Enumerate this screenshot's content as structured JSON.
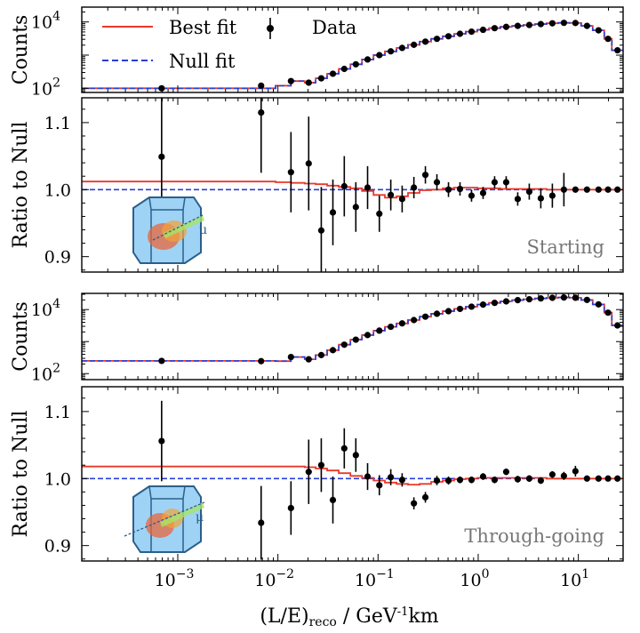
{
  "chart_data": {
    "type": "line",
    "xscale": "log",
    "xlim": [
      0.00011,
      28
    ],
    "xlabel": "(L/E)reco / GeV-1km",
    "x_tick_labels": [
      "10^-3",
      "10^-2",
      "10^-1",
      "10^0",
      "10^1"
    ],
    "legend": {
      "placement": "top-left",
      "entries": [
        {
          "label": "Best fit",
          "color": "#e8392b",
          "style": "solid"
        },
        {
          "label": "Null fit",
          "color": "#2a3ed6",
          "style": "dashed"
        },
        {
          "label": "Data",
          "color": "#000000",
          "style": "points-with-errorbars"
        }
      ]
    },
    "bin_edges": [
      0.00011,
      0.0048,
      0.0095,
      0.0135,
      0.0185,
      0.0238,
      0.031,
      0.0405,
      0.053,
      0.069,
      0.09,
      0.117,
      0.153,
      0.199,
      0.26,
      0.339,
      0.442,
      0.576,
      0.751,
      0.98,
      1.278,
      1.667,
      2.173,
      2.834,
      3.696,
      4.819,
      6.284,
      8.194,
      10.68,
      13.93,
      18.16,
      21.6,
      28
    ],
    "panels": [
      {
        "name": "Starting",
        "counts": {
          "ylabel": "Counts",
          "yscale": "log",
          "ylim": [
            75,
            28000
          ],
          "y_tick_labels": [
            "10^2",
            "10^4"
          ],
          "x": [
            0.00069,
            0.0068,
            0.0135,
            0.0203,
            0.0271,
            0.0354,
            0.046,
            0.06,
            0.0786,
            0.103,
            0.134,
            0.174,
            0.228,
            0.297,
            0.387,
            0.505,
            0.658,
            0.858,
            1.119,
            1.459,
            1.903,
            2.482,
            3.236,
            4.22,
            5.503,
            7.176,
            9.356,
            12.2,
            15.91,
            19.8,
            24.6
          ],
          "y": [
            100,
            120,
            165,
            148,
            200,
            275,
            385,
            530,
            740,
            1000,
            1300,
            1650,
            2050,
            2550,
            3100,
            3700,
            4400,
            5100,
            5800,
            6500,
            7100,
            7600,
            8100,
            8600,
            9100,
            9400,
            9300,
            7600,
            5600,
            3100,
            1400
          ],
          "best_fit": [
            100,
            100,
            120,
            165,
            148,
            200,
            275,
            385,
            530,
            740,
            1000,
            1300,
            1650,
            2050,
            2550,
            3100,
            3700,
            4400,
            5100,
            5800,
            6500,
            7100,
            7600,
            8100,
            8600,
            9100,
            9400,
            9300,
            7600,
            5600,
            3100,
            1400
          ],
          "null_fit": [
            100,
            100,
            120,
            165,
            148,
            200,
            275,
            385,
            530,
            740,
            1000,
            1300,
            1650,
            2050,
            2550,
            3100,
            3700,
            4400,
            5100,
            5800,
            6500,
            7100,
            7600,
            8100,
            8600,
            9100,
            9400,
            9300,
            7600,
            5600,
            3100,
            1400
          ]
        },
        "ratio": {
          "ylabel": "Ratio to Null",
          "ylim": [
            0.877,
            1.137
          ],
          "y_ticks": [
            0.9,
            1.0,
            1.1
          ],
          "y_tick_labels": [
            "0.9",
            "1.0",
            "1.1"
          ],
          "label": "Starting",
          "x": [
            0.00069,
            0.0068,
            0.0135,
            0.0203,
            0.0271,
            0.0354,
            0.046,
            0.06,
            0.0786,
            0.103,
            0.134,
            0.174,
            0.228,
            0.297,
            0.387,
            0.505,
            0.658,
            0.858,
            1.119,
            1.459,
            1.903,
            2.482,
            3.236,
            4.22,
            5.503,
            7.176,
            9.356,
            12.2,
            15.91,
            19.8,
            24.6
          ],
          "y": [
            1.049,
            1.115,
            1.026,
            1.039,
            0.939,
            0.966,
            1.005,
            0.974,
            1.003,
            0.964,
            0.992,
            0.986,
            1.003,
            1.022,
            1.011,
            1.0,
            1.001,
            0.991,
            0.995,
            1.011,
            1.011,
            0.986,
            0.997,
            0.987,
            0.991,
            1.0,
            1.0,
            1.0,
            1.0,
            1.0,
            1.0
          ],
          "yerr": [
            0.11,
            0.09,
            0.06,
            0.07,
            0.065,
            0.049,
            0.045,
            0.037,
            0.032,
            0.027,
            0.023,
            0.02,
            0.016,
            0.013,
            0.012,
            0.011,
            0.01,
            0.009,
            0.009,
            0.009,
            0.009,
            0.01,
            0.012,
            0.015,
            0.018,
            0.025,
            0.0,
            0.0,
            0.0,
            0.0,
            0.0
          ],
          "best_fit": [
            1.012,
            1.012,
            1.011,
            1.01,
            1.009,
            1.008,
            1.006,
            1.004,
            1.002,
            0.998,
            0.992,
            0.988,
            0.99,
            0.995,
            0.999,
            1.0,
            1.002,
            1.003,
            1.003,
            1.002,
            1.002,
            1.001,
            1.001,
            1.001,
            1.001,
            1.0,
            1.0,
            1.0,
            1.0,
            1.0,
            1.0,
            1.0
          ],
          "null_fit_value": 1.0
        }
      },
      {
        "name": "Through-going",
        "counts": {
          "ylabel": "Counts",
          "yscale": "log",
          "ylim": [
            65,
            32000
          ],
          "y_tick_labels": [
            "10^2",
            "10^4"
          ],
          "x": [
            0.00069,
            0.0068,
            0.0135,
            0.0203,
            0.0271,
            0.0354,
            0.046,
            0.06,
            0.0786,
            0.103,
            0.134,
            0.174,
            0.228,
            0.297,
            0.387,
            0.505,
            0.658,
            0.858,
            1.119,
            1.459,
            1.903,
            2.482,
            3.236,
            4.22,
            5.503,
            7.176,
            9.356,
            12.2,
            15.91,
            19.8,
            24.6
          ],
          "y": [
            250,
            245,
            330,
            280,
            380,
            540,
            800,
            1150,
            1600,
            2200,
            2900,
            3700,
            4700,
            6000,
            7400,
            8900,
            10500,
            12300,
            14300,
            16200,
            18000,
            19700,
            21000,
            22300,
            23300,
            23800,
            23400,
            20000,
            14500,
            8000,
            3200
          ],
          "best_fit": [
            250,
            250,
            245,
            330,
            280,
            380,
            540,
            800,
            1150,
            1600,
            2200,
            2900,
            3700,
            4700,
            6000,
            7400,
            8900,
            10500,
            12300,
            14300,
            16200,
            18000,
            19700,
            21000,
            22300,
            23300,
            23800,
            23400,
            20000,
            14500,
            8000,
            3200
          ],
          "null_fit": [
            250,
            250,
            245,
            330,
            280,
            380,
            540,
            800,
            1150,
            1600,
            2200,
            2900,
            3700,
            4700,
            6000,
            7400,
            8900,
            10500,
            12300,
            14300,
            16200,
            18000,
            19700,
            21000,
            22300,
            23300,
            23800,
            23400,
            20000,
            14500,
            8000,
            3200
          ]
        },
        "ratio": {
          "ylabel": "Ratio to Null",
          "ylim": [
            0.877,
            1.137
          ],
          "y_ticks": [
            0.9,
            1.0,
            1.1
          ],
          "y_tick_labels": [
            "0.9",
            "1.0",
            "1.1"
          ],
          "label": "Through-going",
          "x": [
            0.00069,
            0.0068,
            0.0135,
            0.0203,
            0.0271,
            0.0354,
            0.046,
            0.06,
            0.0786,
            0.103,
            0.134,
            0.174,
            0.228,
            0.297,
            0.387,
            0.505,
            0.658,
            0.858,
            1.119,
            1.459,
            1.903,
            2.482,
            3.236,
            4.22,
            5.503,
            7.176,
            9.356,
            12.2,
            15.91,
            19.8,
            24.6
          ],
          "y": [
            1.056,
            0.934,
            0.956,
            1.01,
            1.02,
            0.968,
            1.045,
            1.035,
            1.003,
            0.99,
            1.002,
            0.998,
            0.963,
            0.972,
            0.997,
            0.997,
            0.998,
            0.998,
            1.003,
            0.998,
            1.01,
            0.999,
            1.0,
            0.997,
            1.006,
            1.004,
            1.011,
            1.0,
            1.0,
            1.0,
            1.0
          ],
          "yerr": [
            0.06,
            0.055,
            0.04,
            0.048,
            0.04,
            0.035,
            0.03,
            0.025,
            0.02,
            0.015,
            0.012,
            0.01,
            0.009,
            0.008,
            0.007,
            0.006,
            0.005,
            0.005,
            0.005,
            0.005,
            0.005,
            0.005,
            0.005,
            0.005,
            0.005,
            0.006,
            0.008,
            0.0,
            0.0,
            0.0,
            0.0
          ],
          "best_fit": [
            1.018,
            1.018,
            1.018,
            1.018,
            1.017,
            1.015,
            1.012,
            1.008,
            1.004,
            1.001,
            0.997,
            0.994,
            0.992,
            0.991,
            0.992,
            0.995,
            0.997,
            0.999,
            1.0,
            1.001,
            1.001,
            1.001,
            1.001,
            1.001,
            1.001,
            1.0,
            1.0,
            1.0,
            1.0,
            1.0,
            1.0,
            1.0
          ],
          "null_fit_value": 1.0
        }
      }
    ]
  },
  "colors": {
    "best_fit": "#e8392b",
    "null_fit": "#2a3ed6",
    "data": "#000000",
    "label": "#777777"
  }
}
